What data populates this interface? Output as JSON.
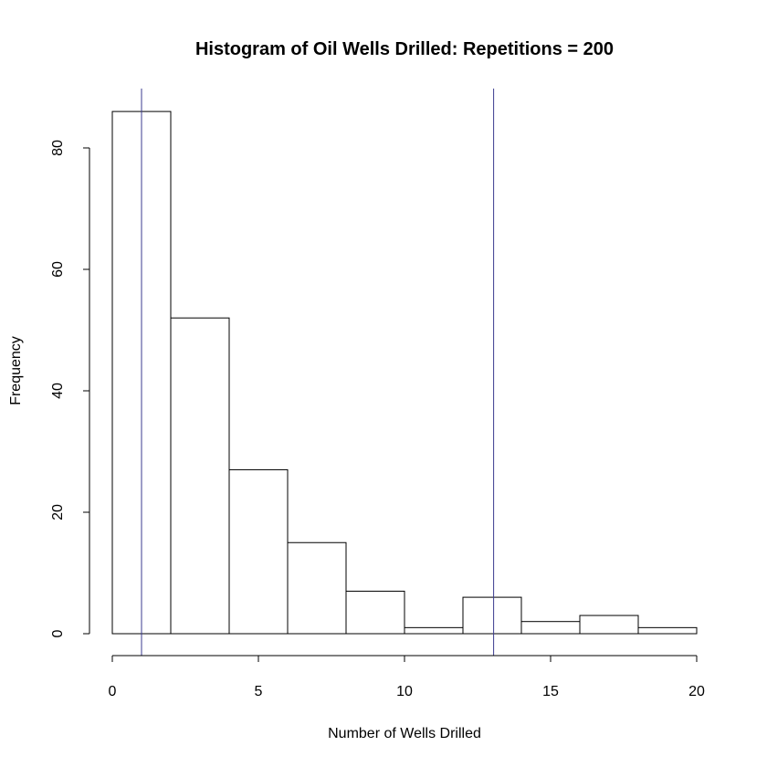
{
  "chart_data": {
    "type": "bar",
    "title": "Histogram of Oil Wells Drilled: Repetitions = 200",
    "xlabel": "Number of Wells Drilled",
    "ylabel": "Frequency",
    "bins": [
      {
        "start": 0,
        "end": 2,
        "count": 86
      },
      {
        "start": 2,
        "end": 4,
        "count": 52
      },
      {
        "start": 4,
        "end": 6,
        "count": 27
      },
      {
        "start": 6,
        "end": 8,
        "count": 15
      },
      {
        "start": 8,
        "end": 10,
        "count": 7
      },
      {
        "start": 10,
        "end": 12,
        "count": 1
      },
      {
        "start": 12,
        "end": 14,
        "count": 6
      },
      {
        "start": 14,
        "end": 16,
        "count": 2
      },
      {
        "start": 16,
        "end": 18,
        "count": 3
      },
      {
        "start": 18,
        "end": 20,
        "count": 1
      }
    ],
    "xlim": [
      0,
      20
    ],
    "ylim": [
      0,
      86
    ],
    "xticks": [
      0,
      5,
      10,
      15,
      20
    ],
    "yticks": [
      0,
      20,
      40,
      60,
      80
    ],
    "reference_lines_x": [
      1,
      13.05
    ],
    "reference_line_color": "#3b3b8f",
    "bar_fill": "#ffffff",
    "grid": false,
    "legend": "none"
  }
}
